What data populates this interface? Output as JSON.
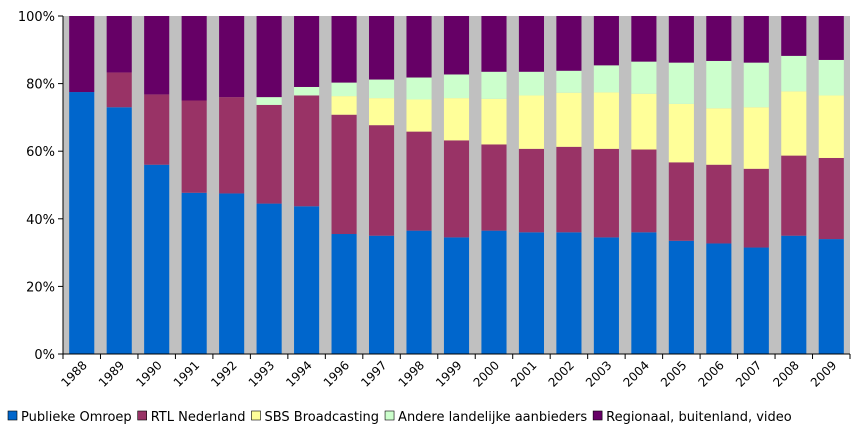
{
  "chart_data": {
    "type": "bar",
    "stacked": true,
    "title": "",
    "xlabel": "",
    "ylabel": "",
    "ylim": [
      0,
      100
    ],
    "yticks": [
      "0%",
      "20%",
      "40%",
      "60%",
      "80%",
      "100%"
    ],
    "grid": false,
    "legend_position": "bottom",
    "plot_background": "#C0C0C0",
    "categories": [
      "1988",
      "1989",
      "1990",
      "1991",
      "1992",
      "1993",
      "1994",
      "1996",
      "1997",
      "1998",
      "1999",
      "2000",
      "2001",
      "2002",
      "2003",
      "2004",
      "2005",
      "2006",
      "2007",
      "2008",
      "2009"
    ],
    "series": [
      {
        "name": "Publieke Omroep",
        "color": "#0066CC",
        "values": [
          77.5,
          73,
          56,
          47.7,
          47.5,
          44.5,
          43.7,
          35.5,
          35,
          36.5,
          34.5,
          36.5,
          36,
          36,
          34.5,
          36,
          33.5,
          32.7,
          31.5,
          35,
          34
        ]
      },
      {
        "name": "RTL Nederland",
        "color": "#993366",
        "values": [
          0,
          10.3,
          20.8,
          27.3,
          28.5,
          29.2,
          32.8,
          35.3,
          32.7,
          29.3,
          28.7,
          25.5,
          24.7,
          25.3,
          26.2,
          24.5,
          23.2,
          23.3,
          23.3,
          23.7,
          24
        ]
      },
      {
        "name": "SBS Broadcasting",
        "color": "#FFFF99",
        "values": [
          0,
          0,
          0,
          0,
          0,
          0,
          0,
          5.5,
          8,
          9.5,
          12.5,
          13.5,
          15.8,
          16,
          16.7,
          16.5,
          17.3,
          16.7,
          18.2,
          19,
          18.5
        ]
      },
      {
        "name": "Andere landelijke aanbieders",
        "color": "#CCFFCC",
        "values": [
          0,
          0,
          0,
          0,
          0,
          2.3,
          2.5,
          4,
          5.5,
          6.5,
          7,
          8,
          7,
          6.5,
          8,
          9.5,
          12.2,
          14,
          13.2,
          10.5,
          10.5
        ]
      },
      {
        "name": "Regionaal, buitenland, video",
        "color": "#660066",
        "values": [
          22.5,
          16.7,
          23.2,
          25,
          24,
          24,
          21,
          19.7,
          18.8,
          18.2,
          17.3,
          16.5,
          16.5,
          16.2,
          14.6,
          13.5,
          13.8,
          13.3,
          13.8,
          11.8,
          13
        ]
      }
    ]
  }
}
